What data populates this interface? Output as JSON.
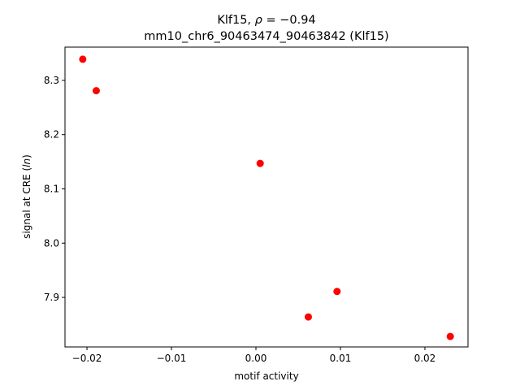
{
  "chart_data": {
    "type": "scatter",
    "title": "Klf15, ρ = −0.94",
    "subtitle": "mm10_chr6_90463474_90463842 (Klf15)",
    "xlabel": "motif activity",
    "ylabel": "signal at CRE (ln)",
    "xlim": [
      -0.0226,
      0.0251
    ],
    "ylim": [
      7.8087,
      8.3613
    ],
    "x_ticks": [
      -0.02,
      -0.01,
      0.0,
      0.01,
      0.02
    ],
    "x_tick_labels": [
      "−0.02",
      "−0.01",
      "0.00",
      "0.01",
      "0.02"
    ],
    "y_ticks": [
      7.9,
      8.0,
      8.1,
      8.2,
      8.3
    ],
    "y_tick_labels": [
      "7.9",
      "8.0",
      "8.1",
      "8.2",
      "8.3"
    ],
    "grid": false,
    "point_color": "#ff0000",
    "points": [
      {
        "x": -0.0205,
        "y": 8.339
      },
      {
        "x": -0.0189,
        "y": 8.281
      },
      {
        "x": 0.0005,
        "y": 8.147
      },
      {
        "x": 0.0062,
        "y": 7.864
      },
      {
        "x": 0.0096,
        "y": 7.911
      },
      {
        "x": 0.023,
        "y": 7.828
      }
    ]
  }
}
